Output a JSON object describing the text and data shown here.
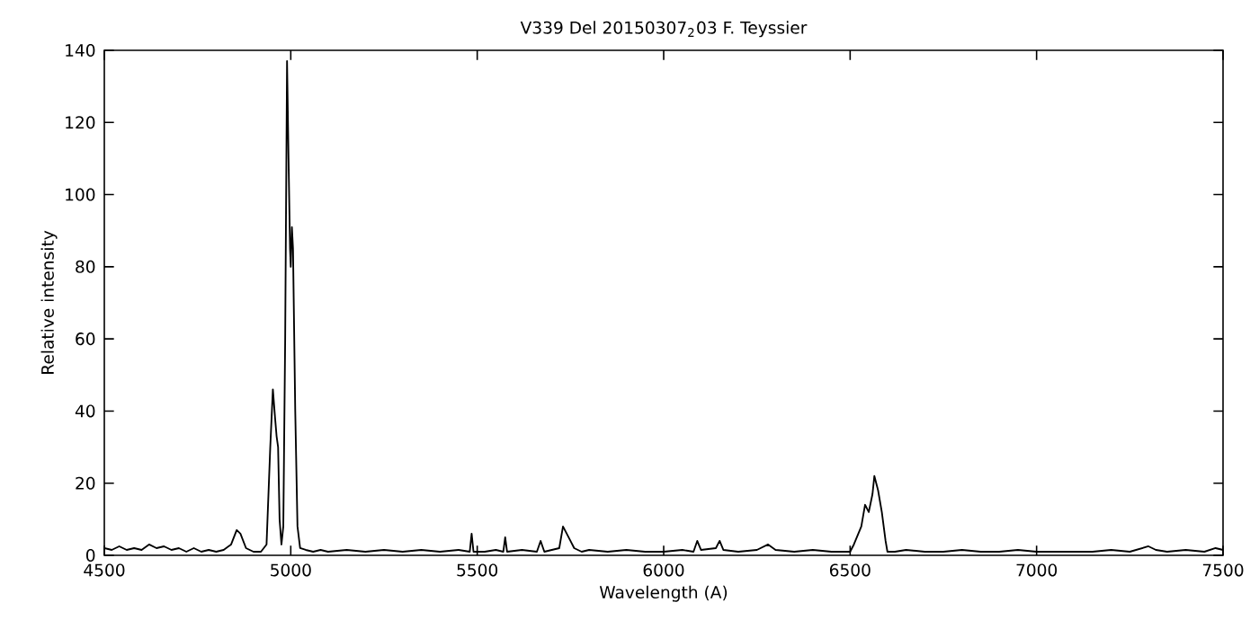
{
  "chart_data": {
    "type": "line",
    "title": "V339 Del            20150307$_{2}$03            F. Teyssier",
    "xlabel": "Wavelength (A)",
    "ylabel": "Relative intensity",
    "xlim": [
      4500,
      7500
    ],
    "xticks": [
      4500,
      5000,
      5500,
      6000,
      6500,
      7000,
      7500
    ],
    "ylim": [
      0,
      140
    ],
    "yticks": [
      0,
      20,
      40,
      60,
      80,
      100,
      120,
      140
    ],
    "line_style": "solid",
    "series": [
      {
        "color": "#000000",
        "x": [
          4500,
          4520,
          4540,
          4560,
          4580,
          4600,
          4620,
          4640,
          4660,
          4680,
          4700,
          4720,
          4740,
          4760,
          4780,
          4800,
          4820,
          4840,
          4855,
          4865,
          4880,
          4900,
          4920,
          4935,
          4945,
          4952,
          4958,
          4962,
          4966,
          4970,
          4975,
          4980,
          4985,
          4990,
          4994,
          4998,
          5000,
          5003,
          5006,
          5012,
          5018,
          5025,
          5040,
          5060,
          5080,
          5100,
          5150,
          5200,
          5250,
          5300,
          5350,
          5400,
          5450,
          5480,
          5485,
          5490,
          5520,
          5550,
          5570,
          5575,
          5580,
          5620,
          5660,
          5670,
          5680,
          5700,
          5720,
          5730,
          5740,
          5750,
          5760,
          5780,
          5800,
          5850,
          5900,
          5950,
          6000,
          6050,
          6080,
          6090,
          6100,
          6140,
          6150,
          6160,
          6200,
          6250,
          6280,
          6300,
          6350,
          6400,
          6450,
          6500,
          6510,
          6530,
          6540,
          6550,
          6560,
          6565,
          6575,
          6585,
          6595,
          6600,
          6620,
          6650,
          6700,
          6750,
          6800,
          6850,
          6900,
          6950,
          7000,
          7050,
          7100,
          7150,
          7200,
          7250,
          7300,
          7320,
          7350,
          7400,
          7450,
          7480,
          7500
        ],
        "values": [
          2,
          1.5,
          2.5,
          1.5,
          2,
          1.5,
          3,
          2,
          2.5,
          1.5,
          2,
          1,
          2,
          1,
          1.5,
          1,
          1.5,
          3,
          7,
          6,
          2,
          1,
          1,
          3,
          30,
          46,
          38,
          33,
          30,
          10,
          3,
          8,
          60,
          137,
          110,
          85,
          80,
          91,
          85,
          40,
          8,
          2,
          1.5,
          1,
          1.5,
          1,
          1.5,
          1,
          1.5,
          1,
          1.5,
          1,
          1.5,
          1,
          6,
          1,
          1,
          1.5,
          1,
          5,
          1,
          1.5,
          1,
          4,
          1,
          1.5,
          2,
          8,
          6,
          4,
          2,
          1,
          1.5,
          1,
          1.5,
          1,
          1,
          1.5,
          1,
          4,
          1.5,
          2,
          4,
          1.5,
          1,
          1.5,
          3,
          1.5,
          1,
          1.5,
          1,
          1,
          3,
          8,
          14,
          12,
          17,
          22,
          18,
          12,
          4,
          1,
          1,
          1.5,
          1,
          1,
          1.5,
          1,
          1,
          1.5,
          1,
          1,
          1,
          1,
          1.5,
          1,
          2.5,
          1.5,
          1,
          1.5,
          1,
          2,
          1.5
        ]
      }
    ]
  }
}
